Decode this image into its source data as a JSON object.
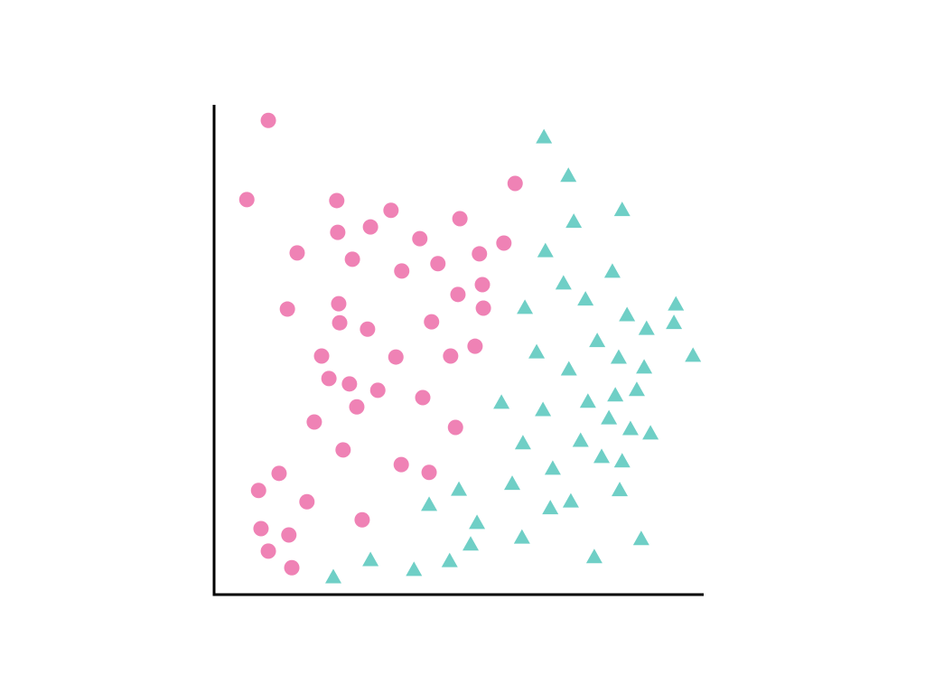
{
  "chart_data": {
    "type": "scatter",
    "title": "",
    "xlabel": "",
    "ylabel": "",
    "xlim": [
      0,
      100
    ],
    "ylim": [
      0,
      100
    ],
    "grid": false,
    "ticks": false,
    "legend": "none",
    "series": [
      {
        "marker": "circle",
        "color": "#ef82b5",
        "points": [
          [
            11.1,
            97.0
          ],
          [
            6.7,
            80.8
          ],
          [
            25.1,
            80.6
          ],
          [
            36.2,
            78.6
          ],
          [
            25.3,
            74.1
          ],
          [
            32.0,
            75.2
          ],
          [
            50.3,
            76.9
          ],
          [
            42.1,
            72.8
          ],
          [
            61.6,
            84.1
          ],
          [
            59.3,
            71.9
          ],
          [
            17.0,
            69.9
          ],
          [
            28.3,
            68.6
          ],
          [
            38.4,
            66.2
          ],
          [
            45.8,
            67.7
          ],
          [
            54.3,
            69.7
          ],
          [
            54.9,
            63.4
          ],
          [
            49.9,
            61.4
          ],
          [
            55.1,
            58.6
          ],
          [
            15.0,
            58.4
          ],
          [
            25.5,
            59.5
          ],
          [
            25.7,
            55.6
          ],
          [
            31.4,
            54.3
          ],
          [
            44.5,
            55.8
          ],
          [
            53.4,
            50.8
          ],
          [
            48.4,
            48.8
          ],
          [
            37.2,
            48.6
          ],
          [
            22.0,
            48.8
          ],
          [
            23.5,
            44.2
          ],
          [
            27.7,
            43.1
          ],
          [
            33.5,
            41.8
          ],
          [
            42.7,
            40.3
          ],
          [
            29.2,
            38.4
          ],
          [
            20.5,
            35.3
          ],
          [
            49.4,
            34.2
          ],
          [
            26.4,
            29.6
          ],
          [
            38.3,
            26.6
          ],
          [
            44.0,
            25.0
          ],
          [
            13.3,
            24.8
          ],
          [
            9.1,
            21.3
          ],
          [
            19.0,
            19.0
          ],
          [
            30.3,
            15.3
          ],
          [
            9.6,
            13.5
          ],
          [
            15.3,
            12.2
          ],
          [
            11.1,
            8.9
          ],
          [
            15.9,
            5.5
          ]
        ]
      },
      {
        "marker": "triangle",
        "color": "#6fcfc6",
        "points": [
          [
            67.5,
            93.5
          ],
          [
            72.5,
            85.6
          ],
          [
            83.5,
            78.6
          ],
          [
            73.6,
            76.2
          ],
          [
            67.8,
            70.2
          ],
          [
            81.5,
            66.0
          ],
          [
            71.5,
            63.6
          ],
          [
            76.0,
            60.3
          ],
          [
            63.6,
            58.6
          ],
          [
            94.5,
            59.3
          ],
          [
            84.5,
            57.1
          ],
          [
            88.5,
            54.3
          ],
          [
            94.1,
            55.5
          ],
          [
            78.4,
            51.8
          ],
          [
            66.0,
            49.5
          ],
          [
            82.8,
            48.4
          ],
          [
            72.6,
            46.0
          ],
          [
            88.0,
            46.4
          ],
          [
            98.0,
            48.8
          ],
          [
            58.8,
            39.2
          ],
          [
            67.3,
            37.7
          ],
          [
            76.5,
            39.4
          ],
          [
            82.1,
            40.7
          ],
          [
            86.5,
            41.8
          ],
          [
            80.8,
            36.0
          ],
          [
            85.2,
            33.8
          ],
          [
            89.3,
            32.9
          ],
          [
            75.0,
            31.4
          ],
          [
            63.2,
            30.9
          ],
          [
            79.3,
            28.1
          ],
          [
            83.5,
            27.2
          ],
          [
            69.3,
            25.7
          ],
          [
            61.0,
            22.6
          ],
          [
            50.1,
            21.4
          ],
          [
            83.0,
            21.3
          ],
          [
            44.0,
            18.3
          ],
          [
            73.0,
            19.0
          ],
          [
            68.8,
            17.6
          ],
          [
            53.8,
            14.6
          ],
          [
            63.0,
            11.6
          ],
          [
            52.5,
            10.2
          ],
          [
            87.4,
            11.3
          ],
          [
            32.0,
            7.0
          ],
          [
            48.2,
            6.8
          ],
          [
            40.9,
            5.0
          ],
          [
            77.8,
            7.6
          ],
          [
            24.4,
            3.5
          ]
        ]
      }
    ]
  }
}
